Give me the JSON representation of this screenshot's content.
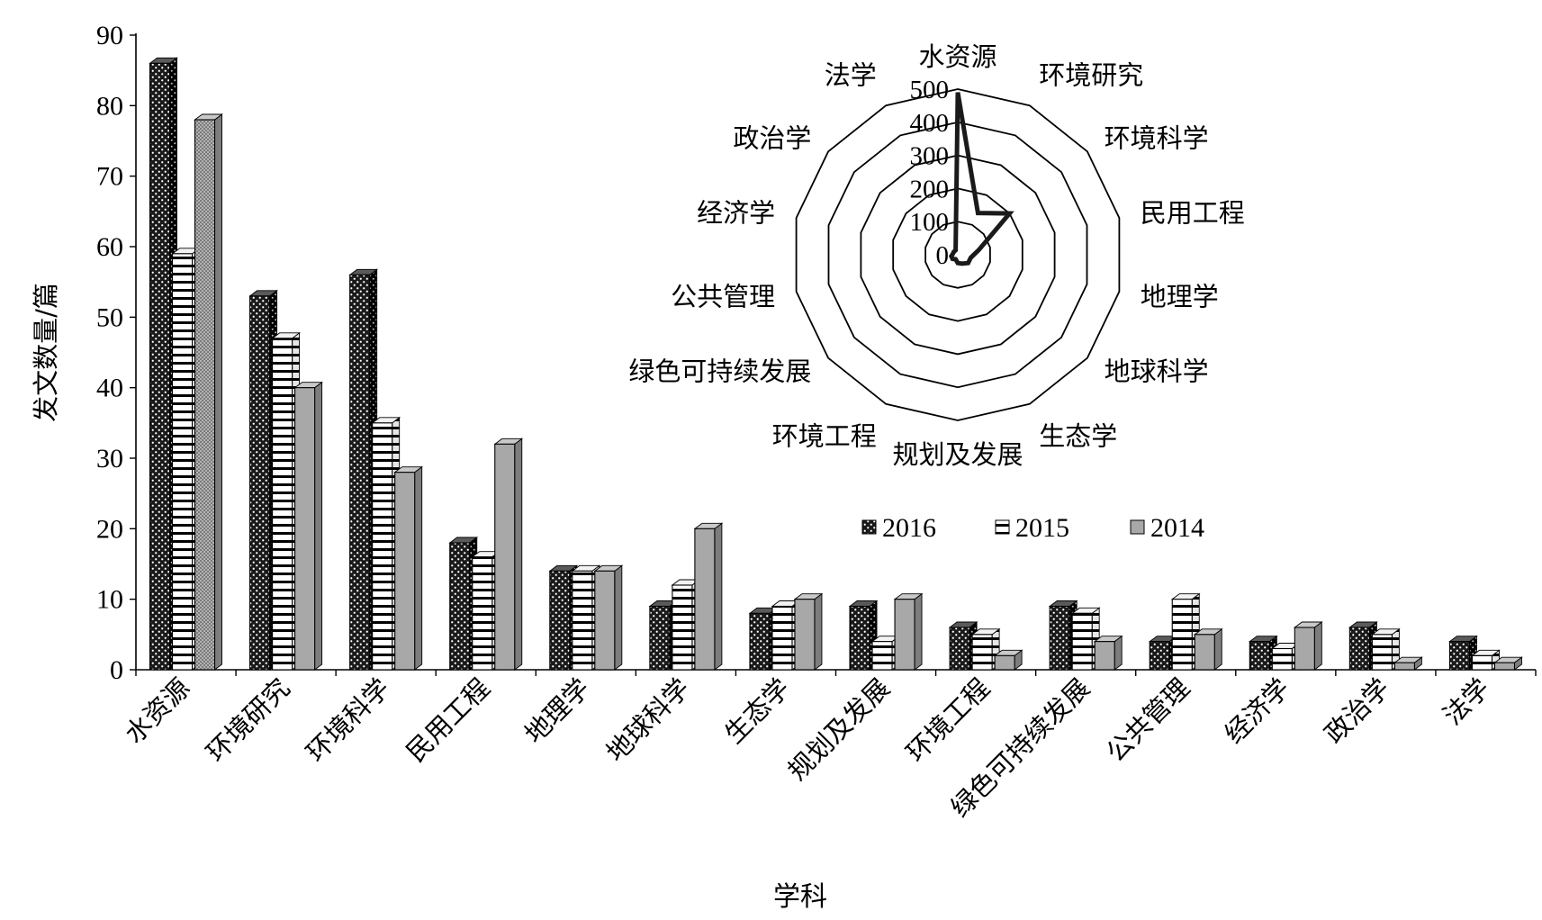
{
  "chart_data": [
    {
      "type": "bar",
      "xlabel": "学科",
      "ylabel": "发文数量/篇",
      "ylim": [
        0,
        90
      ],
      "yticks": [
        0,
        10,
        20,
        30,
        40,
        50,
        60,
        70,
        80,
        90
      ],
      "legend_placement": "center-right, below inset",
      "categories": [
        "水资源",
        "环境研究",
        "环境科学",
        "民用工程",
        "地理学",
        "地球科学",
        "生态学",
        "规划及发展",
        "环境工程",
        "绿色可持续发展",
        "公共管理",
        "经济学",
        "政治学",
        "法学"
      ],
      "series": [
        {
          "name": "2016",
          "pattern": "dotted-dark",
          "values": [
            86,
            53,
            56,
            18,
            14,
            9,
            8,
            9,
            6,
            9,
            4,
            4,
            6,
            4
          ]
        },
        {
          "name": "2015",
          "pattern": "horizontal-stripes",
          "values": [
            59,
            47,
            35,
            16,
            14,
            12,
            9,
            4,
            5,
            8,
            10,
            3,
            5,
            2
          ]
        },
        {
          "name": "2014",
          "pattern": "solid-gray",
          "values": [
            78,
            40,
            28,
            32,
            14,
            20,
            10,
            10,
            2,
            4,
            5,
            6,
            1,
            1
          ]
        }
      ],
      "colors": {
        "dark": "#1a1a1a",
        "stripe": "#000000",
        "gray": "#a6a6a6",
        "face": "#ffffff"
      }
    },
    {
      "type": "radar",
      "placement": "inset, upper-right",
      "rlim": [
        0,
        500
      ],
      "rticks": [
        0,
        100,
        200,
        300,
        400,
        500
      ],
      "categories": [
        "水资源",
        "环境研究",
        "环境科学",
        "民用工程",
        "地理学",
        "地球科学",
        "生态学",
        "规划及发展",
        "环境工程",
        "绿色可持续发展",
        "公共管理",
        "经济学",
        "政治学",
        "法学"
      ],
      "values": [
        490,
        140,
        200,
        65,
        40,
        40,
        30,
        25,
        15,
        20,
        20,
        15,
        15,
        15
      ],
      "line_color": "#1a1a1a"
    }
  ]
}
